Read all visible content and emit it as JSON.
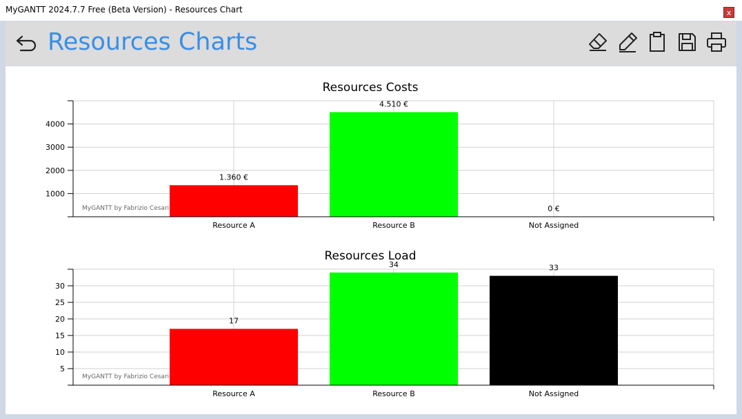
{
  "window": {
    "title": "MyGANTT 2024.7.7 Free (Beta Version) - Resources Chart",
    "close_label": "x"
  },
  "header": {
    "title": "Resources Charts",
    "icons": [
      "back-arrow-icon",
      "eraser-icon",
      "pencil-icon",
      "clipboard-icon",
      "save-icon",
      "print-icon"
    ]
  },
  "watermark": "MyGANTT by Fabrizio Cesarini",
  "chart_data": [
    {
      "type": "bar",
      "title": "Resources Costs",
      "categories": [
        "Resource A",
        "Resource B",
        "Not Assigned"
      ],
      "values": [
        1360,
        4510,
        0
      ],
      "data_labels": [
        "1.360 €",
        "4.510 €",
        "0 €"
      ],
      "colors": [
        "#ff0000",
        "#00ff00",
        "#000000"
      ],
      "yticks": [
        1000,
        2000,
        3000,
        4000
      ],
      "ylim": [
        0,
        5000
      ],
      "grid": true,
      "xlabel": "",
      "ylabel": ""
    },
    {
      "type": "bar",
      "title": "Resources Load",
      "categories": [
        "Resource A",
        "Resource B",
        "Not Assigned"
      ],
      "values": [
        17,
        34,
        33
      ],
      "data_labels": [
        "17",
        "34",
        "33"
      ],
      "colors": [
        "#ff0000",
        "#00ff00",
        "#000000"
      ],
      "yticks": [
        5,
        10,
        15,
        20,
        25,
        30
      ],
      "ylim": [
        0,
        35
      ],
      "grid": true,
      "xlabel": "",
      "ylabel": ""
    }
  ]
}
